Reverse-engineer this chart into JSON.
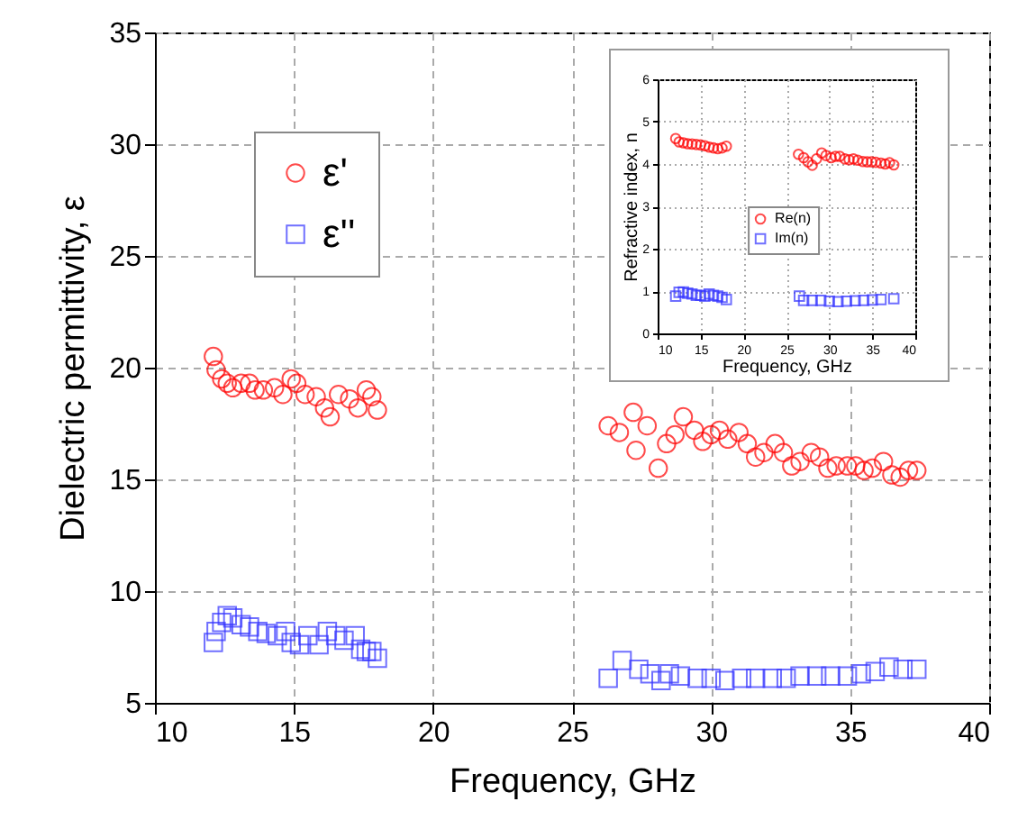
{
  "chart_data": [
    {
      "type": "scatter",
      "xlabel": "Frequency, GHz",
      "ylabel": "Dielectric permittivity, ε",
      "xlim": [
        10,
        40
      ],
      "xticks": [
        10,
        15,
        20,
        25,
        30,
        35,
        40
      ],
      "ylim": [
        5,
        35
      ],
      "yticks": [
        5,
        10,
        15,
        20,
        25,
        30,
        35
      ],
      "grid": true,
      "legend": "top left",
      "series": [
        {
          "name": "ε'",
          "color": "#ff0000",
          "marker": "circle",
          "x": [
            12.1,
            12.2,
            12.4,
            12.6,
            12.8,
            13.1,
            13.4,
            13.6,
            13.9,
            14.3,
            14.6,
            14.9,
            15.1,
            15.4,
            15.8,
            16.1,
            16.3,
            16.6,
            17.0,
            17.3,
            17.6,
            17.8,
            18.0,
            26.3,
            26.7,
            27.2,
            27.3,
            27.7,
            28.1,
            28.4,
            28.7,
            29.0,
            29.4,
            29.7,
            30.0,
            30.3,
            30.6,
            31.0,
            31.3,
            31.6,
            31.9,
            32.3,
            32.6,
            32.9,
            33.2,
            33.6,
            33.9,
            34.2,
            34.5,
            34.9,
            35.2,
            35.5,
            35.8,
            36.2,
            36.5,
            36.8,
            37.1,
            37.4
          ],
          "values": [
            20.5,
            19.9,
            19.5,
            19.3,
            19.1,
            19.3,
            19.3,
            19.0,
            19.0,
            19.1,
            18.8,
            19.5,
            19.3,
            18.8,
            18.7,
            18.2,
            17.8,
            18.8,
            18.6,
            18.2,
            19.0,
            18.7,
            18.1,
            17.4,
            17.1,
            18.0,
            16.3,
            17.4,
            15.5,
            16.6,
            17.0,
            17.8,
            17.2,
            16.7,
            17.0,
            17.2,
            16.8,
            17.1,
            16.6,
            16.0,
            16.2,
            16.6,
            16.2,
            15.6,
            15.8,
            16.2,
            16.0,
            15.5,
            15.6,
            15.6,
            15.6,
            15.4,
            15.5,
            15.8,
            15.2,
            15.1,
            15.4,
            15.4
          ]
        },
        {
          "name": "ε''",
          "color": "#3333ff",
          "marker": "square",
          "x": [
            12.1,
            12.2,
            12.4,
            12.6,
            12.8,
            13.1,
            13.4,
            13.7,
            14.0,
            14.4,
            14.7,
            14.9,
            15.2,
            15.5,
            15.9,
            16.2,
            16.5,
            16.8,
            17.2,
            17.4,
            17.6,
            17.8,
            18.0,
            26.3,
            26.8,
            27.4,
            27.8,
            28.2,
            28.5,
            28.9,
            29.5,
            30.0,
            30.5,
            31.1,
            31.6,
            32.2,
            32.7,
            33.2,
            33.8,
            34.3,
            34.9,
            35.4,
            35.9,
            36.4,
            36.9,
            37.4
          ],
          "values": [
            7.7,
            8.2,
            8.6,
            8.9,
            8.8,
            8.5,
            8.4,
            8.2,
            8.1,
            8.0,
            8.2,
            7.7,
            7.6,
            8.0,
            7.6,
            8.2,
            8.0,
            7.8,
            8.0,
            7.4,
            7.3,
            7.3,
            7.0,
            6.1,
            6.9,
            6.5,
            6.3,
            6.0,
            6.3,
            6.2,
            6.1,
            6.1,
            6.0,
            6.1,
            6.1,
            6.1,
            6.1,
            6.2,
            6.2,
            6.2,
            6.2,
            6.3,
            6.4,
            6.6,
            6.5,
            6.5
          ]
        }
      ]
    },
    {
      "type": "scatter",
      "xlabel": "Frequency, GHz",
      "ylabel": "Refractive index, n",
      "xlim": [
        10,
        40
      ],
      "xticks": [
        10,
        15,
        20,
        25,
        30,
        35,
        40
      ],
      "ylim": [
        0,
        6
      ],
      "yticks": [
        0,
        1,
        2,
        3,
        4,
        5,
        6
      ],
      "grid": true,
      "legend": "center",
      "series": [
        {
          "name": "Re(n)",
          "color": "#ff0000",
          "marker": "circle",
          "x": [
            12.1,
            12.5,
            13.0,
            13.5,
            14.0,
            14.5,
            15.0,
            15.5,
            16.0,
            16.5,
            17.0,
            17.5,
            18.0,
            26.4,
            27.0,
            27.5,
            28.0,
            28.5,
            29.1,
            29.6,
            30.2,
            30.7,
            31.2,
            31.8,
            32.3,
            32.8,
            33.3,
            33.9,
            34.4,
            34.9,
            35.4,
            36.0,
            36.5,
            37.0,
            37.5
          ],
          "values": [
            4.6,
            4.52,
            4.5,
            4.48,
            4.47,
            4.46,
            4.45,
            4.43,
            4.4,
            4.38,
            4.36,
            4.38,
            4.42,
            4.23,
            4.15,
            4.05,
            3.97,
            4.12,
            4.26,
            4.2,
            4.15,
            4.18,
            4.18,
            4.12,
            4.1,
            4.12,
            4.09,
            4.06,
            4.05,
            4.05,
            4.04,
            4.02,
            4.0,
            4.03,
            3.98
          ]
        },
        {
          "name": "Im(n)",
          "color": "#3333ff",
          "marker": "square",
          "x": [
            12.1,
            12.5,
            13.0,
            13.5,
            14.0,
            14.5,
            15.0,
            15.5,
            16.0,
            16.5,
            17.0,
            17.5,
            18.0,
            26.5,
            27.0,
            28.0,
            29.0,
            30.0,
            31.0,
            32.0,
            33.0,
            34.0,
            35.0,
            36.0,
            37.5
          ],
          "values": [
            0.88,
            0.97,
            0.98,
            0.95,
            0.93,
            0.9,
            0.9,
            0.88,
            0.93,
            0.9,
            0.88,
            0.85,
            0.8,
            0.88,
            0.78,
            0.78,
            0.78,
            0.76,
            0.75,
            0.76,
            0.77,
            0.78,
            0.79,
            0.8,
            0.82
          ]
        }
      ]
    }
  ]
}
